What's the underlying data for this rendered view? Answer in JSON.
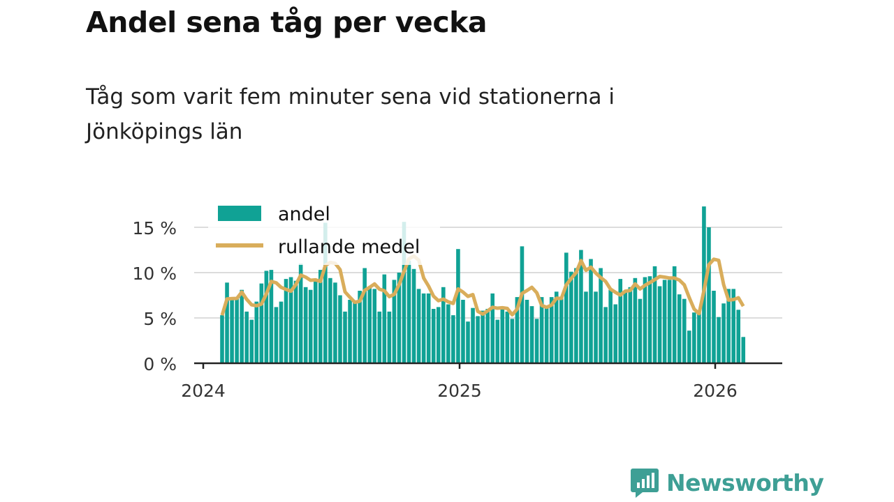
{
  "title": "Andel sena tåg per vecka",
  "subtitle": "Tåg som varit fem minuter sena vid stationerna i Jönköpings län",
  "logo": "Newsworthy",
  "colors": {
    "bar": "#10a295",
    "line": "#d9ad5b"
  },
  "chart_data": {
    "type": "bar",
    "title": "Andel sena tåg per vecka",
    "xlabel": "",
    "ylabel": "",
    "ylim": [
      0,
      18
    ],
    "yticks": [
      0,
      5,
      10,
      15
    ],
    "ytick_labels": [
      "0 %",
      "5 %",
      "10 %",
      "15 %"
    ],
    "xticks": [
      "2024",
      "2025",
      "2026"
    ],
    "legend_position": "top-left",
    "grid": true,
    "rolling_window": 4,
    "series": [
      {
        "name": "andel",
        "type": "bar",
        "values": [
          5.3,
          8.9,
          7.2,
          7.2,
          8.1,
          5.7,
          4.8,
          6.8,
          8.8,
          10.2,
          10.3,
          6.2,
          6.8,
          9.3,
          9.5,
          9.1,
          11.0,
          8.4,
          8.1,
          9.3,
          10.3,
          15.5,
          9.4,
          8.9,
          7.5,
          5.7,
          7.0,
          6.7,
          8.0,
          10.5,
          8.3,
          8.2,
          5.7,
          9.8,
          5.7,
          9.2,
          10.0,
          15.6,
          11.3,
          10.4,
          8.2,
          7.7,
          7.7,
          6.0,
          6.2,
          8.4,
          6.5,
          5.3,
          12.6,
          7.0,
          4.6,
          6.1,
          5.2,
          5.8,
          6.0,
          7.7,
          4.8,
          6.0,
          5.7,
          4.9,
          7.3,
          12.9,
          7.0,
          6.3,
          4.9,
          7.3,
          6.2,
          7.3,
          7.9,
          7.2,
          12.2,
          10.1,
          10.5,
          12.5,
          7.9,
          11.5,
          7.9,
          10.5,
          6.2,
          8.1,
          6.5,
          9.3,
          7.9,
          8.4,
          9.4,
          7.1,
          9.5,
          9.6,
          10.7,
          8.5,
          9.2,
          9.2,
          10.7,
          7.6,
          7.1,
          3.6,
          5.6,
          5.6,
          17.3,
          15.0,
          8.0,
          5.1,
          6.6,
          8.2,
          8.2,
          5.9,
          2.9
        ]
      },
      {
        "name": "rullande medel",
        "type": "line"
      }
    ]
  }
}
